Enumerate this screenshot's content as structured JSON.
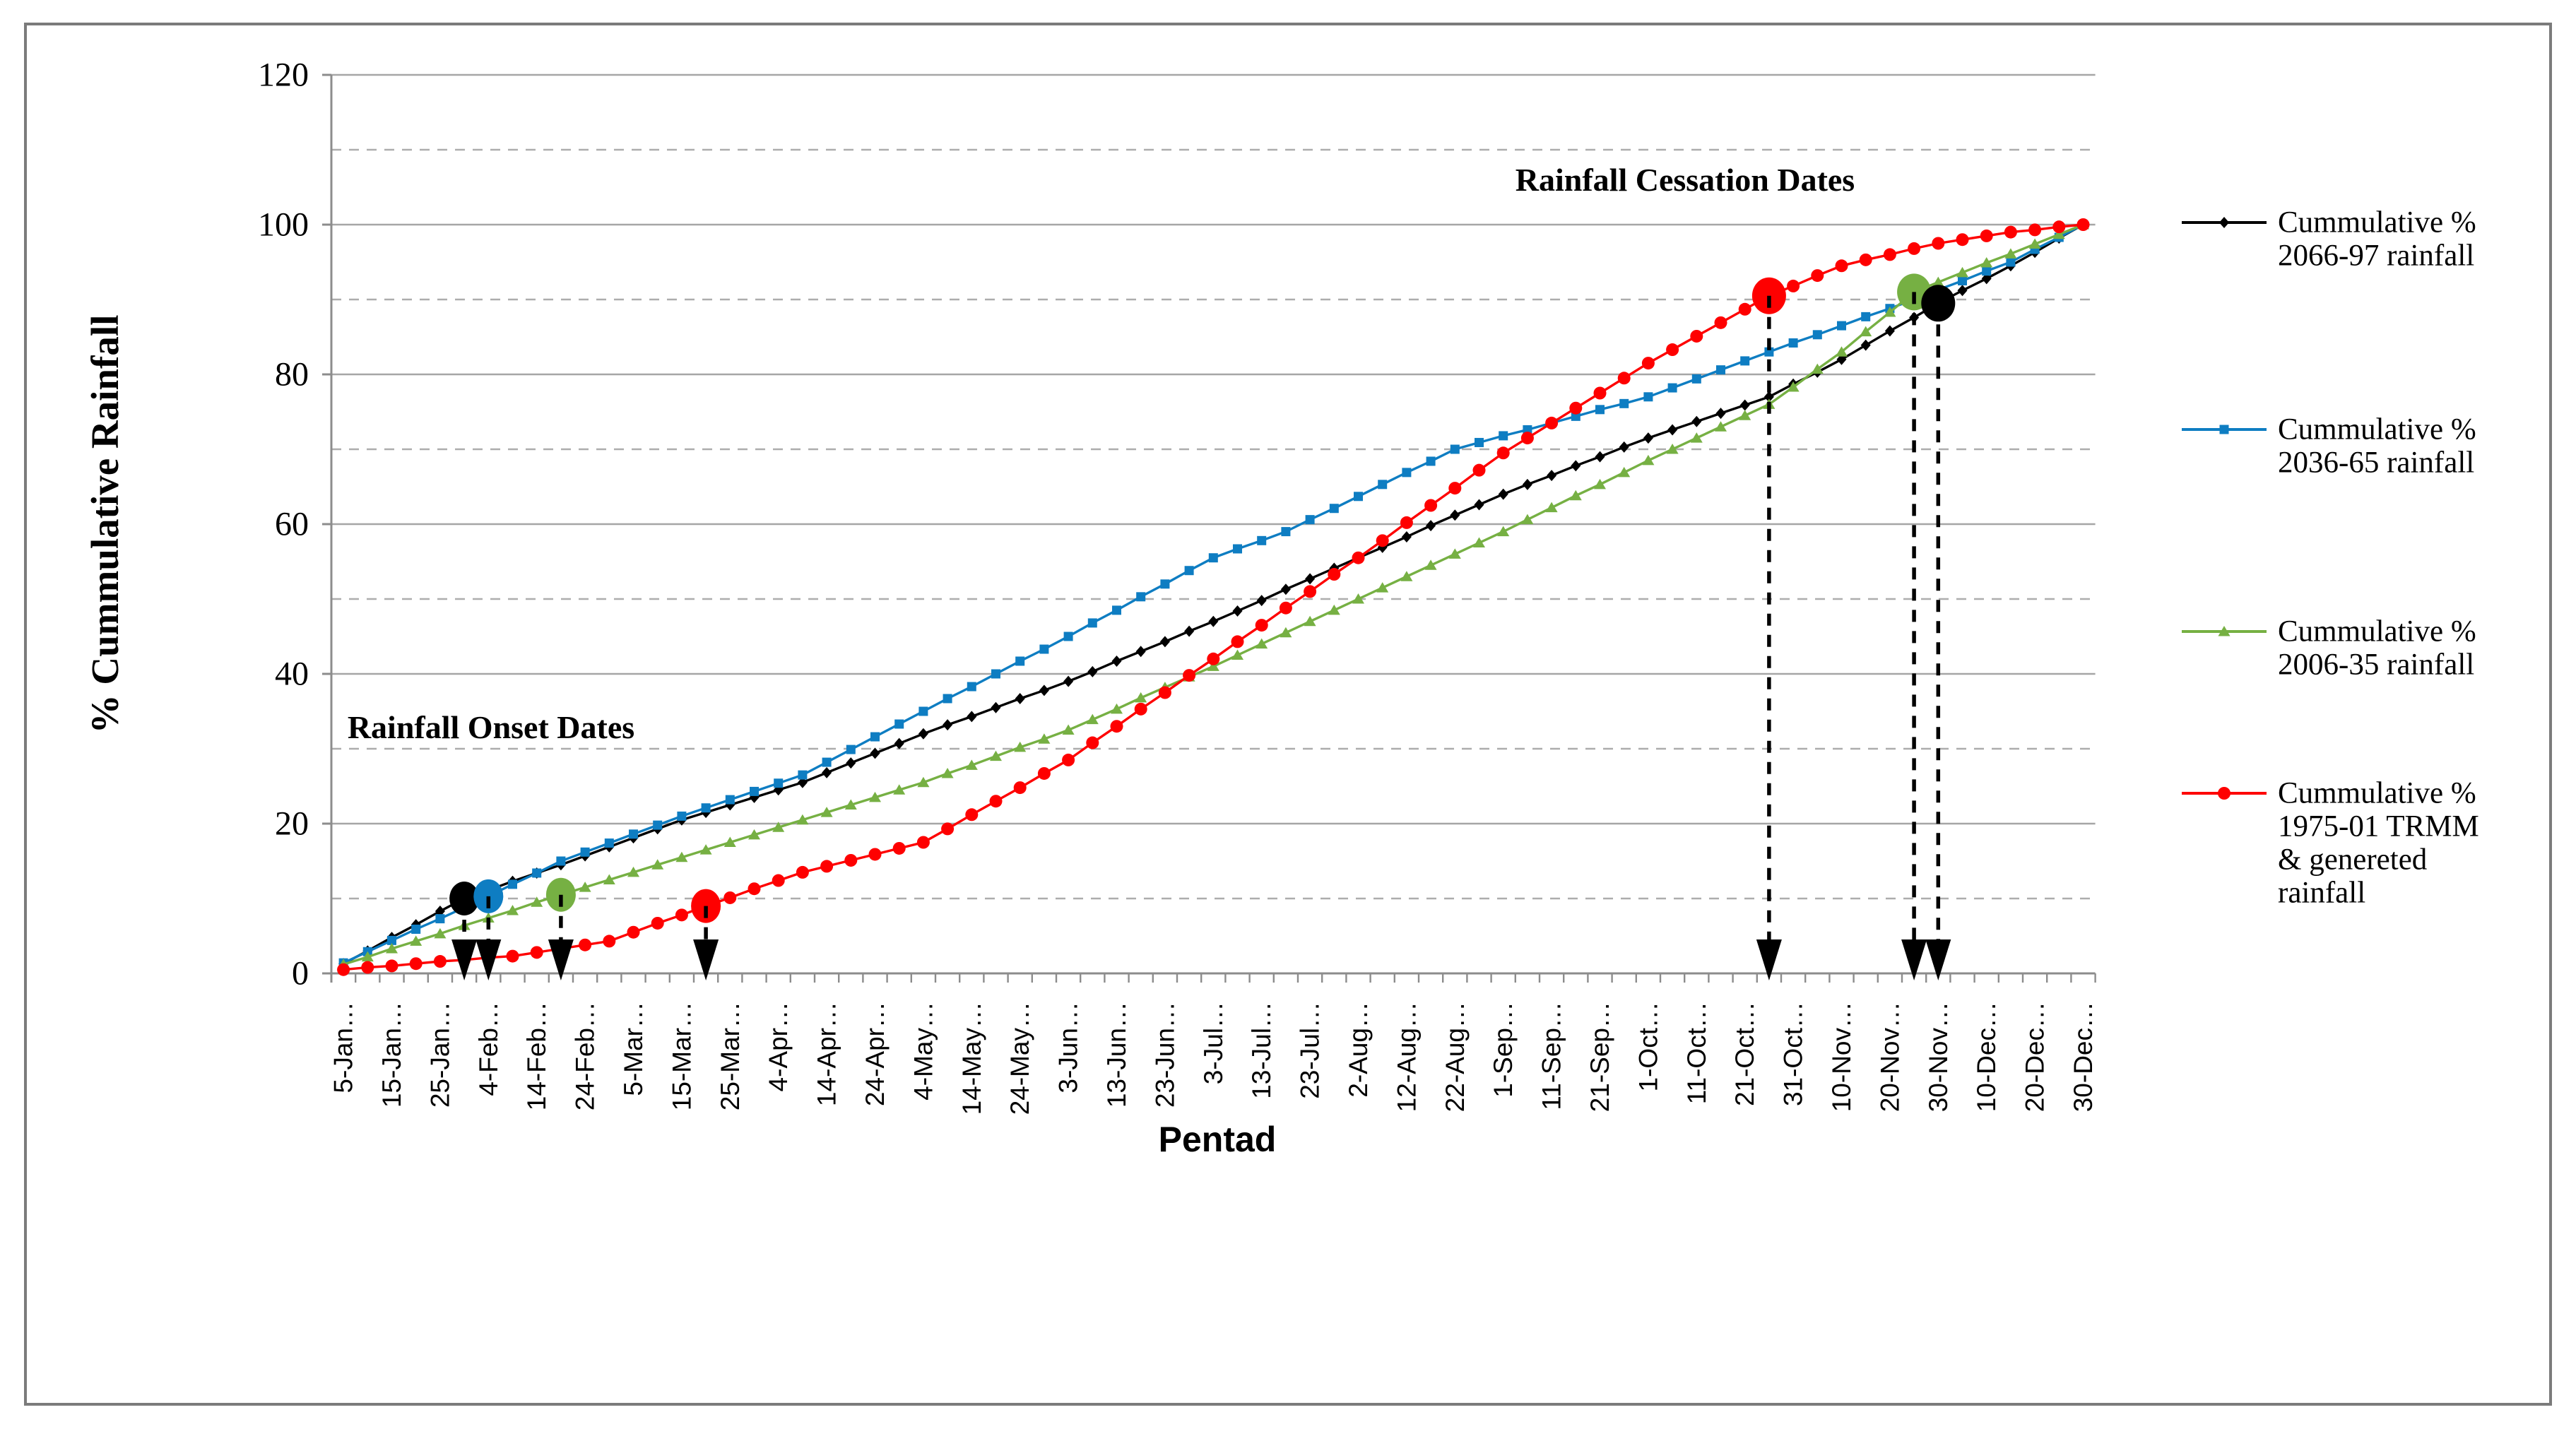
{
  "chart_data": {
    "type": "line",
    "title": "",
    "xlabel": "Pentad",
    "ylabel": "% Cummulative Rainfall",
    "ylim": [
      0,
      120
    ],
    "ytick_major_interval": 20,
    "ytick_minor_interval": 10,
    "y_tick_labels": [
      "0",
      "20",
      "40",
      "60",
      "80",
      "100",
      "120"
    ],
    "grid": "major solid, minor dashed",
    "legend_position": "right",
    "n_points": 73,
    "x_tick_labels": [
      "5-Jan…",
      "15-Jan…",
      "25-Jan…",
      "4-Feb…",
      "14-Feb…",
      "24-Feb…",
      "5-Mar…",
      "15-Mar…",
      "25-Mar…",
      "4-Apr…",
      "14-Apr…",
      "24-Apr…",
      "4-May…",
      "14-May…",
      "24-May…",
      "3-Jun…",
      "13-Jun…",
      "23-Jun…",
      "3-Jul…",
      "13-Jul…",
      "23-Jul…",
      "2-Aug…",
      "12-Aug…",
      "22-Aug…",
      "1-Sep…",
      "11-Sep…",
      "21-Sep…",
      "1-Oct…",
      "11-Oct…",
      "21-Oct…",
      "31-Oct…",
      "10-Nov…",
      "20-Nov…",
      "30-Nov…",
      "10-Dec…",
      "20-Dec…",
      "30-Dec…"
    ],
    "x_tick_label_pentads": [
      1,
      3,
      5,
      7,
      9,
      11,
      13,
      15,
      17,
      19,
      21,
      23,
      25,
      27,
      29,
      31,
      33,
      35,
      37,
      39,
      41,
      43,
      45,
      47,
      49,
      51,
      53,
      55,
      57,
      59,
      61,
      63,
      65,
      67,
      69,
      71,
      73
    ],
    "series": [
      {
        "name": "Cummulative % 2066-97 rainfall",
        "color": "#000000",
        "marker": "diamond",
        "values": [
          1.3,
          3.0,
          4.8,
          6.5,
          8.3,
          10,
          11.1,
          12.3,
          13.4,
          14.5,
          15.7,
          16.9,
          18.1,
          19.3,
          20.5,
          21.5,
          22.5,
          23.5,
          24.5,
          25.5,
          26.8,
          28.1,
          29.4,
          30.7,
          32,
          33.2,
          34.3,
          35.5,
          36.7,
          37.8,
          39,
          40.3,
          41.7,
          43,
          44.3,
          45.7,
          47,
          48.4,
          49.8,
          51.3,
          52.7,
          54.1,
          55.5,
          56.9,
          58.3,
          59.8,
          61.2,
          62.6,
          64,
          65.3,
          66.5,
          67.8,
          69,
          70.3,
          71.5,
          72.6,
          73.7,
          74.8,
          75.9,
          77,
          78.7,
          80.3,
          82,
          83.9,
          85.8,
          87.6,
          89.5,
          91.2,
          92.8,
          94.5,
          96.3,
          98.2,
          100
        ]
      },
      {
        "name": "Cummulative % 2036-65 rainfall",
        "color": "#0E7DC2",
        "marker": "square",
        "values": [
          1.4,
          2.9,
          4.4,
          5.9,
          7.3,
          8.8,
          10.3,
          11.9,
          13.4,
          15,
          16.2,
          17.4,
          18.6,
          19.8,
          21,
          22.1,
          23.2,
          24.3,
          25.4,
          26.5,
          28.2,
          29.9,
          31.6,
          33.3,
          35,
          36.7,
          38.3,
          40,
          41.7,
          43.3,
          45,
          46.8,
          48.5,
          50.3,
          52,
          53.8,
          55.5,
          56.7,
          57.8,
          59,
          60.6,
          62.1,
          63.7,
          65.3,
          66.9,
          68.4,
          70,
          70.9,
          71.8,
          72.6,
          73.5,
          74.4,
          75.3,
          76.1,
          77,
          78.2,
          79.4,
          80.6,
          81.8,
          83,
          84.2,
          85.3,
          86.5,
          87.7,
          88.8,
          90,
          91.3,
          92.5,
          93.8,
          95,
          96.7,
          98.3,
          100
        ]
      },
      {
        "name": "Cummulative % 2006-35 rainfall",
        "color": "#76B043",
        "marker": "triangle",
        "values": [
          1.2,
          2.2,
          3.3,
          4.3,
          5.3,
          6.4,
          7.4,
          8.4,
          9.5,
          10.5,
          11.5,
          12.5,
          13.5,
          14.5,
          15.5,
          16.5,
          17.5,
          18.5,
          19.5,
          20.5,
          21.5,
          22.5,
          23.5,
          24.5,
          25.5,
          26.7,
          27.8,
          29,
          30.2,
          31.3,
          32.5,
          33.9,
          35.3,
          36.8,
          38.2,
          39.6,
          41,
          42.5,
          44,
          45.5,
          47,
          48.5,
          50,
          51.5,
          53,
          54.5,
          56,
          57.5,
          59,
          60.6,
          62.2,
          63.8,
          65.3,
          66.9,
          68.5,
          70,
          71.5,
          73,
          74.5,
          76,
          78.3,
          80.7,
          83,
          85.7,
          88.3,
          91,
          92.3,
          93.6,
          94.9,
          96.1,
          97.4,
          98.7,
          100
        ]
      },
      {
        "name": "Cummulative % 1975-01 TRMM & genereted rainfall",
        "color": "#FE0000",
        "marker": "circle",
        "values": [
          0.5,
          0.8,
          1.0,
          1.3,
          1.6,
          1.8,
          2.1,
          2.3,
          2.8,
          3.3,
          3.8,
          4.3,
          5.5,
          6.7,
          7.8,
          9,
          10.1,
          11.3,
          12.4,
          13.5,
          14.3,
          15.1,
          15.9,
          16.7,
          17.5,
          19.3,
          21.2,
          23,
          24.8,
          26.7,
          28.5,
          30.8,
          33,
          35.3,
          37.5,
          39.8,
          42,
          44.3,
          46.5,
          48.8,
          51,
          53.3,
          55.5,
          57.8,
          60.2,
          62.5,
          64.8,
          67.2,
          69.5,
          71.5,
          73.5,
          75.5,
          77.5,
          79.5,
          81.5,
          83.3,
          85.1,
          86.9,
          88.7,
          90.5,
          91.8,
          93.2,
          94.5,
          95.3,
          96,
          96.8,
          97.5,
          98,
          98.5,
          99,
          99.3,
          99.7,
          100
        ]
      }
    ],
    "onset_markers": [
      {
        "series": "Cummulative % 2066-97 rainfall",
        "pentad": 6,
        "value": 10,
        "color": "#000000"
      },
      {
        "series": "Cummulative % 2036-65 rainfall",
        "pentad": 7,
        "value": 10.3,
        "color": "#0E7DC2"
      },
      {
        "series": "Cummulative % 2006-35 rainfall",
        "pentad": 10,
        "value": 10.5,
        "color": "#76B043"
      },
      {
        "series": "Cummulative % 1975-01 TRMM & genereted rainfall",
        "pentad": 16,
        "value": 9,
        "color": "#FE0000"
      }
    ],
    "cessation_markers": [
      {
        "series": "Cummulative % 1975-01 TRMM & genereted rainfall",
        "pentad": 60,
        "value": 90.5,
        "color": "#FE0000"
      },
      {
        "series": "Cummulative % 2006-35 rainfall",
        "pentad": 66,
        "value": 91,
        "color": "#76B043"
      },
      {
        "series": "Cummulative % 2066-97 rainfall",
        "pentad": 67,
        "value": 89.5,
        "color": "#000000"
      }
    ]
  },
  "annotations": {
    "onset_label": "Rainfall Onset Dates",
    "cessation_label": "Rainfall Cessation Dates"
  },
  "axis_titles": {
    "y": "% Cummulative Rainfall",
    "x": "Pentad"
  },
  "legend": {
    "items": [
      {
        "lines": [
          "Cummulative %",
          "2066-97 rainfall"
        ],
        "marker": "diamond",
        "color": "#000000"
      },
      {
        "lines": [
          "Cummulative %",
          "2036-65 rainfall"
        ],
        "marker": "square",
        "color": "#0E7DC2"
      },
      {
        "lines": [
          "Cummulative %",
          "2006-35 rainfall"
        ],
        "marker": "triangle",
        "color": "#76B043"
      },
      {
        "lines": [
          "Cummulative %",
          "1975-01 TRMM",
          "& genereted",
          "rainfall"
        ],
        "marker": "circle",
        "color": "#FE0000"
      }
    ]
  },
  "colors": {
    "grid_major": "#A6A6A6",
    "grid_minor": "#ADADAD",
    "axis_line": "#8C8C8C",
    "figure_border": "#7B7B7B",
    "background": "#FFFFFF",
    "text": "#000000"
  }
}
